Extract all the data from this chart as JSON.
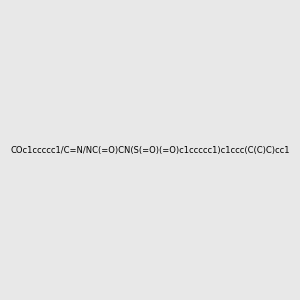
{
  "smiles": "COc1ccccc1/C=N/NC(=O)CN(S(=O)(=O)c1ccccc1)c1ccc(C(C)C)cc1",
  "image_size": 300,
  "background_color": "#e8e8e8",
  "title": ""
}
